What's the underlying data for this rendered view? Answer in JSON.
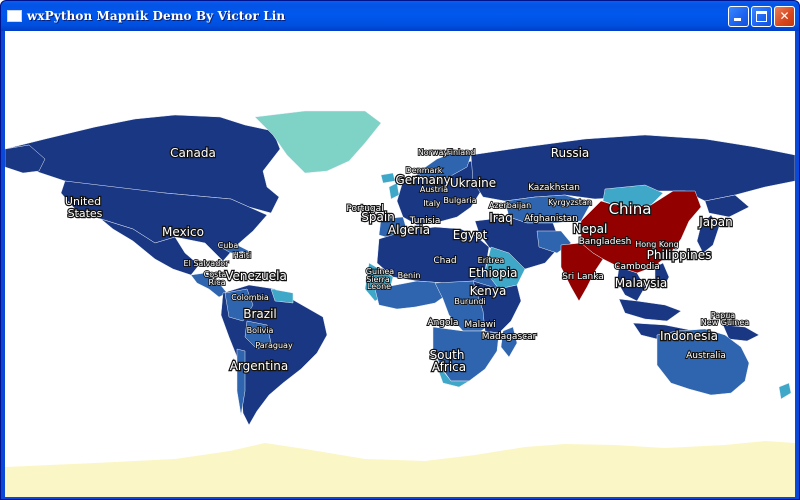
{
  "window": {
    "title": "wxPython Mapnik Demo By Victor Lin"
  },
  "map": {
    "colors": {
      "ocean": "#ffffff",
      "dark": "#1a3784",
      "mid": "#2f64ae",
      "light": "#3fa8c9",
      "pale": "#7fd2c6",
      "china": "#920000",
      "antarctica": "#fbf6c6"
    },
    "labels": [
      {
        "text": "Canada"
      },
      {
        "text": "United"
      },
      {
        "text": "States"
      },
      {
        "text": "Mexico"
      },
      {
        "text": "Cuba"
      },
      {
        "text": "Haiti"
      },
      {
        "text": "El Salvador"
      },
      {
        "text": "Costa"
      },
      {
        "text": "Rica"
      },
      {
        "text": "Venezuela"
      },
      {
        "text": "Colombia"
      },
      {
        "text": "Brazil"
      },
      {
        "text": "Bolivia"
      },
      {
        "text": "Paraguay"
      },
      {
        "text": "Argentina"
      },
      {
        "text": "Russia"
      },
      {
        "text": "Norway"
      },
      {
        "text": "Finland"
      },
      {
        "text": "Denmark"
      },
      {
        "text": "Germany"
      },
      {
        "text": "Austria"
      },
      {
        "text": "Ukraine"
      },
      {
        "text": "Bulgaria"
      },
      {
        "text": "Italy"
      },
      {
        "text": "Portugal"
      },
      {
        "text": "Spain"
      },
      {
        "text": "Tunisia"
      },
      {
        "text": "Azerbaijan"
      },
      {
        "text": "Kazakhstan"
      },
      {
        "text": "Kyrgyzstan"
      },
      {
        "text": "Afghanistan"
      },
      {
        "text": "Iraq"
      },
      {
        "text": "China"
      },
      {
        "text": "Japan"
      },
      {
        "text": "Nepal"
      },
      {
        "text": "Bangladesh"
      },
      {
        "text": "Hong Kong"
      },
      {
        "text": "Cambodia"
      },
      {
        "text": "Philippines"
      },
      {
        "text": "Sri Lanka"
      },
      {
        "text": "Malaysia"
      },
      {
        "text": "Algeria"
      },
      {
        "text": "Egypt"
      },
      {
        "text": "Chad"
      },
      {
        "text": "Eritrea"
      },
      {
        "text": "Ethiopia"
      },
      {
        "text": "Guinea"
      },
      {
        "text": "Sierra"
      },
      {
        "text": "Leone"
      },
      {
        "text": "Benin"
      },
      {
        "text": "Kenya"
      },
      {
        "text": "Burundi"
      },
      {
        "text": "Angola"
      },
      {
        "text": "Malawi"
      },
      {
        "text": "Madagascar"
      },
      {
        "text": "South"
      },
      {
        "text": "Africa"
      },
      {
        "text": "Indonesia"
      },
      {
        "text": "Papua"
      },
      {
        "text": "New Guinea"
      },
      {
        "text": "Australia"
      }
    ]
  }
}
